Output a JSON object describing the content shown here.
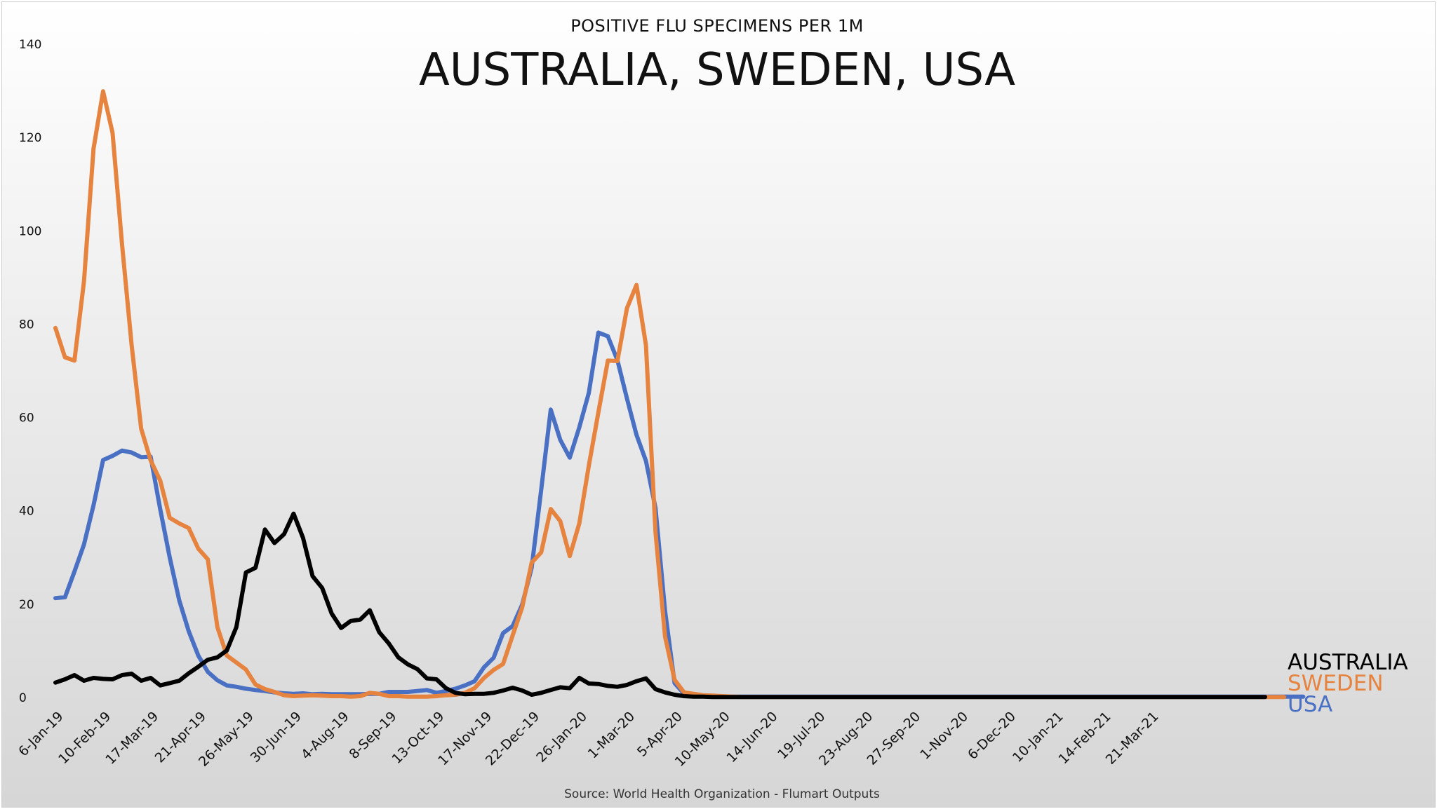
{
  "chart_data": {
    "type": "line",
    "subtitle": "POSITIVE FLU SPECIMENS PER 1M",
    "title": "AUSTRALIA, SWEDEN, USA",
    "source": "Source: World Health Organization - Flumart Outputs",
    "xlabel": "",
    "ylabel": "",
    "ylim": [
      0,
      140
    ],
    "yticks": [
      0,
      20,
      40,
      60,
      80,
      100,
      120,
      140
    ],
    "x_tick_labels": [
      "6-Jan-19",
      "10-Feb-19",
      "17-Mar-19",
      "21-Apr-19",
      "26-May-19",
      "30-Jun-19",
      "4-Aug-19",
      "8-Sep-19",
      "13-Oct-19",
      "17-Nov-19",
      "22-Dec-19",
      "26-Jan-20",
      "1-Mar-20",
      "5-Apr-20",
      "10-May-20",
      "14-Jun-20",
      "19-Jul-20",
      "23-Aug-20",
      "27-Sep-20",
      "1-Nov-20",
      "6-Dec-20",
      "10-Jan-21",
      "14-Feb-21",
      "21-Mar-21"
    ],
    "grid": false,
    "legend_position": "right, near baseline",
    "series": [
      {
        "name": "AUSTRALIA",
        "color": "#000000",
        "values": [
          3.2,
          3.9,
          4.8,
          3.6,
          4.2,
          4.0,
          3.9,
          4.8,
          5.1,
          3.6,
          4.2,
          2.6,
          3.1,
          3.6,
          5.2,
          6.6,
          8.1,
          8.6,
          10.1,
          15.1,
          26.8,
          27.8,
          36.0,
          33.1,
          35.0,
          39.4,
          34.2,
          26.0,
          23.5,
          18.0,
          14.9,
          16.4,
          16.7,
          18.7,
          14.0,
          11.6,
          8.6,
          7.1,
          6.1,
          4.1,
          3.9,
          2.0,
          1.0,
          0.7,
          0.8,
          0.8,
          1.0,
          1.5,
          2.1,
          1.5,
          0.6,
          1.0,
          1.6,
          2.2,
          2.0,
          4.2,
          3.0,
          2.9,
          2.5,
          2.3,
          2.7,
          3.5,
          4.1,
          1.8,
          1.1,
          0.6,
          0.3,
          0.2,
          0.2,
          0.1,
          0.1,
          0.1,
          0.1,
          0.1,
          0.1,
          0.1,
          0.1,
          0.1,
          0.1,
          0.1,
          0.1,
          0.1,
          0.1,
          0.1,
          0.1,
          0.1,
          0.1,
          0.1,
          0.1,
          0.1,
          0.1,
          0.1,
          0.1,
          0.1,
          0.1,
          0.1,
          0.1,
          0.1,
          0.1,
          0.1,
          0.1,
          0.1,
          0.1,
          0.1,
          0.1,
          0.1,
          0.1,
          0.1,
          0.1,
          0.1,
          0.1,
          0.1,
          0.1,
          0.1,
          0.1,
          0.1,
          0.1,
          0.1,
          0.1,
          0.1,
          0.1,
          0.1,
          0.1,
          0.1,
          0.1,
          0.1,
          0.1,
          0.1
        ]
      },
      {
        "name": "SWEDEN",
        "color": "#E5833F",
        "values": [
          79.2,
          72.9,
          72.2,
          89.2,
          117.6,
          129.9,
          121.0,
          97.0,
          75.5,
          57.6,
          50.8,
          46.5,
          38.5,
          37.3,
          36.3,
          31.9,
          29.6,
          15.1,
          9.0,
          7.5,
          6.0,
          2.8,
          1.8,
          1.2,
          0.5,
          0.3,
          0.4,
          0.5,
          0.4,
          0.3,
          0.3,
          0.2,
          0.3,
          1.0,
          0.8,
          0.3,
          0.3,
          0.2,
          0.2,
          0.2,
          0.3,
          0.5,
          0.6,
          1.0,
          2.0,
          4.2,
          5.9,
          7.2,
          13.3,
          19.3,
          28.9,
          31.1,
          40.4,
          37.8,
          30.3,
          37.3,
          49.7,
          61.1,
          72.2,
          72.1,
          83.4,
          88.4,
          75.5,
          35.5,
          13.1,
          3.8,
          1.1,
          0.8,
          0.5,
          0.4,
          0.3,
          0.2,
          0.1,
          0.1,
          0.1,
          0.1,
          0.1,
          0.1,
          0.1,
          0.1,
          0.1,
          0.1,
          0.1,
          0.1,
          0.1,
          0.1,
          0.1,
          0.1,
          0.1,
          0.1,
          0.1,
          0.1,
          0.1,
          0.1,
          0.1,
          0.1,
          0.1,
          0.1,
          0.1,
          0.1,
          0.1,
          0.1,
          0.1,
          0.1,
          0.1,
          0.1,
          0.1,
          0.1,
          0.1,
          0.1,
          0.1,
          0.1,
          0.1,
          0.1,
          0.1,
          0.1,
          0.1,
          0.1,
          0.1,
          0.1,
          0.1,
          0.1,
          0.1,
          0.1,
          0.1,
          0.1,
          0.1,
          0.1,
          0.1,
          0.1
        ]
      },
      {
        "name": "USA",
        "color": "#4A70C4",
        "values": [
          21.3,
          21.5,
          27.0,
          32.8,
          41.2,
          50.9,
          51.8,
          52.9,
          52.5,
          51.5,
          51.6,
          40.4,
          30.0,
          20.8,
          14.2,
          9.0,
          5.5,
          3.7,
          2.6,
          2.3,
          1.9,
          1.6,
          1.4,
          1.1,
          0.9,
          0.8,
          0.9,
          0.7,
          0.8,
          0.7,
          0.7,
          0.7,
          0.7,
          0.8,
          0.8,
          1.2,
          1.2,
          1.2,
          1.4,
          1.6,
          1.0,
          1.4,
          1.9,
          2.6,
          3.5,
          6.5,
          8.5,
          13.8,
          15.3,
          19.9,
          27.8,
          44.5,
          61.7,
          55.2,
          51.4,
          57.9,
          65.3,
          78.2,
          77.4,
          72.3,
          64.1,
          56.3,
          50.7,
          40.6,
          18.6,
          3.1,
          0.8,
          0.4,
          0.3,
          0.2,
          0.2,
          0.2,
          0.2,
          0.2,
          0.2,
          0.2,
          0.2,
          0.2,
          0.2,
          0.2,
          0.2,
          0.2,
          0.2,
          0.2,
          0.2,
          0.2,
          0.2,
          0.2,
          0.2,
          0.2,
          0.2,
          0.2,
          0.2,
          0.2,
          0.2,
          0.2,
          0.2,
          0.2,
          0.2,
          0.2,
          0.2,
          0.2,
          0.2,
          0.2,
          0.2,
          0.2,
          0.2,
          0.2,
          0.2,
          0.2,
          0.2,
          0.2,
          0.2,
          0.2,
          0.2,
          0.2,
          0.2,
          0.2,
          0.2,
          0.2,
          0.2,
          0.2,
          0.2,
          0.2,
          0.2,
          0.2,
          0.2,
          0.2,
          0.2,
          0.2,
          0.2,
          0.2
        ]
      }
    ]
  }
}
